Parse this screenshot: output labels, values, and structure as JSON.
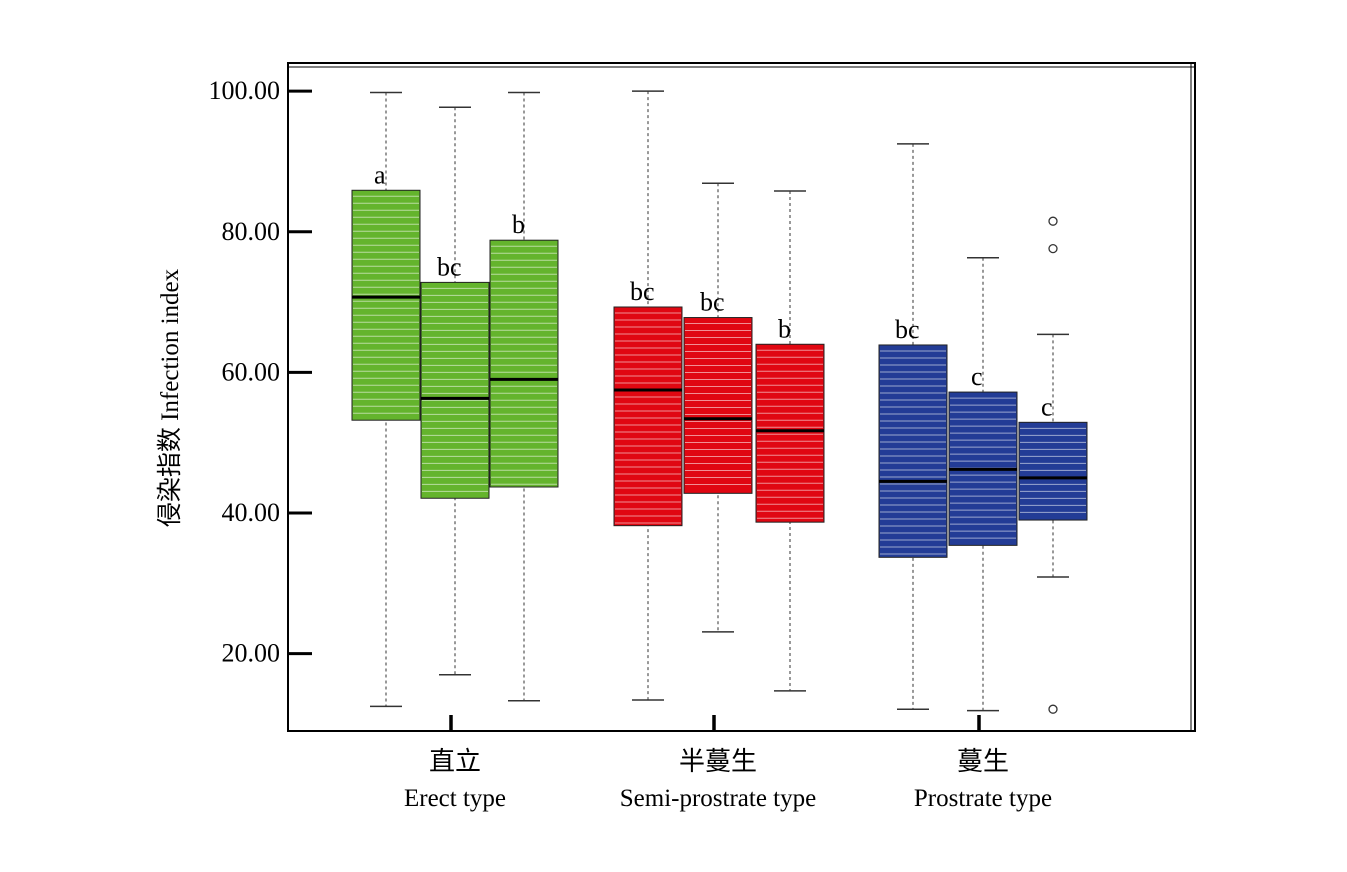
{
  "chart_data": {
    "type": "box",
    "ylabel": "侵染指数 Infection index",
    "ylim": [
      9,
      104
    ],
    "yticks": [
      20,
      40,
      60,
      80,
      100
    ],
    "ytick_labels": [
      "20.00",
      "40.00",
      "60.00",
      "80.00",
      "100.00"
    ],
    "grid": false,
    "groups": [
      {
        "label_cn": "直立",
        "label_en": "Erect type",
        "color": "#64b42d"
      },
      {
        "label_cn": "半蔓生",
        "label_en": "Semi-prostrate type",
        "color": "#e00712"
      },
      {
        "label_cn": "蔓生",
        "label_en": "Prostrate type",
        "color": "#233c96"
      }
    ],
    "boxes": [
      {
        "group": 0,
        "whisker_low": 12.5,
        "q1": 53.2,
        "median": 70.7,
        "q3": 85.9,
        "whisker_high": 99.8,
        "letter": "a",
        "outliers": []
      },
      {
        "group": 0,
        "whisker_low": 17.0,
        "q1": 42.1,
        "median": 56.3,
        "q3": 72.8,
        "whisker_high": 97.7,
        "letter": "bc",
        "outliers": []
      },
      {
        "group": 0,
        "whisker_low": 13.3,
        "q1": 43.7,
        "median": 59.0,
        "q3": 78.8,
        "whisker_high": 99.8,
        "letter": "b",
        "outliers": []
      },
      {
        "group": 1,
        "whisker_low": 13.4,
        "q1": 38.2,
        "median": 57.5,
        "q3": 69.3,
        "whisker_high": 100.0,
        "letter": "bc",
        "outliers": []
      },
      {
        "group": 1,
        "whisker_low": 23.1,
        "q1": 42.8,
        "median": 53.4,
        "q3": 67.8,
        "whisker_high": 86.9,
        "letter": "bc",
        "outliers": []
      },
      {
        "group": 1,
        "whisker_low": 14.7,
        "q1": 38.7,
        "median": 51.7,
        "q3": 64.0,
        "whisker_high": 85.8,
        "letter": "b",
        "outliers": []
      },
      {
        "group": 2,
        "whisker_low": 12.1,
        "q1": 33.7,
        "median": 44.5,
        "q3": 63.9,
        "whisker_high": 92.5,
        "letter": "bc",
        "outliers": []
      },
      {
        "group": 2,
        "whisker_low": 11.9,
        "q1": 35.4,
        "median": 46.2,
        "q3": 57.2,
        "whisker_high": 76.3,
        "letter": "c",
        "outliers": []
      },
      {
        "group": 2,
        "whisker_low": 30.9,
        "q1": 39.0,
        "median": 45.0,
        "q3": 52.9,
        "whisker_high": 65.4,
        "letter": "c",
        "outliers": [
          81.5,
          77.6,
          12.1
        ]
      }
    ]
  }
}
